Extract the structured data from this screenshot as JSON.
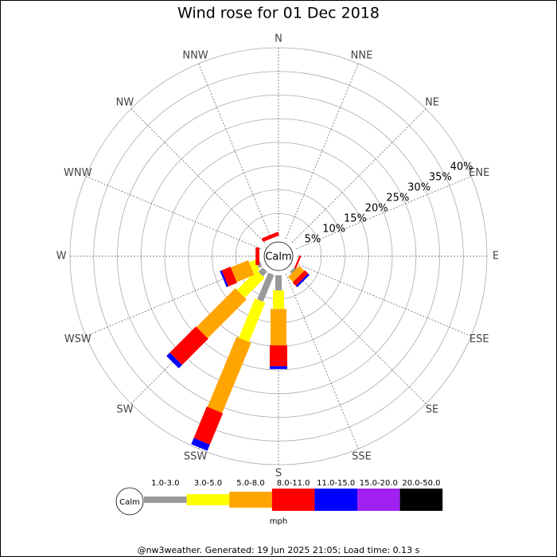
{
  "chart_data": {
    "type": "windrose",
    "title": "Wind rose for 01 Dec 2018",
    "directions": [
      "N",
      "NNE",
      "NE",
      "ENE",
      "E",
      "ESE",
      "SE",
      "SSE",
      "S",
      "SSW",
      "SW",
      "WSW",
      "W",
      "WNW",
      "NW",
      "NNW"
    ],
    "calm_label": "Calm",
    "rlim": [
      0,
      40
    ],
    "rticks": [
      {
        "value": 5,
        "label": "5%"
      },
      {
        "value": 10,
        "label": "10%"
      },
      {
        "value": 15,
        "label": "15%"
      },
      {
        "value": 20,
        "label": "20%"
      },
      {
        "value": 25,
        "label": "25%"
      },
      {
        "value": 30,
        "label": "30%"
      },
      {
        "value": 35,
        "label": "35%"
      },
      {
        "value": 40,
        "label": "40%"
      }
    ],
    "series": [
      {
        "name": "1.0-3.0",
        "color": "#999999",
        "values": [
          0,
          0,
          0,
          0,
          0,
          0,
          0.5,
          0,
          3.2,
          6.1,
          1.3,
          0.8,
          0,
          0,
          0,
          0
        ]
      },
      {
        "name": "3.0-5.0",
        "color": "#ffff00",
        "values": [
          0,
          0,
          0,
          0,
          0,
          0,
          0,
          0,
          3.9,
          9.0,
          5.9,
          1.4,
          0,
          0,
          0,
          0
        ]
      },
      {
        "name": "5.0-8.0",
        "color": "#ffa500",
        "values": [
          0,
          0,
          0,
          0,
          0,
          0,
          1.5,
          0,
          7.7,
          16.0,
          11.6,
          4.0,
          0,
          0,
          0,
          0
        ]
      },
      {
        "name": "8.0-11.0",
        "color": "#ff0000",
        "values": [
          0,
          0,
          0,
          0,
          0,
          0.4,
          1.0,
          0,
          4.4,
          7.2,
          7.8,
          2.0,
          0.8,
          0,
          0,
          0.8
        ]
      },
      {
        "name": "11.0-15.0",
        "color": "#0000ff",
        "values": [
          0,
          0,
          0,
          0,
          0,
          0,
          0.4,
          0,
          0.6,
          1.4,
          1.0,
          0.4,
          0,
          0,
          0,
          0
        ]
      },
      {
        "name": "15.0-20.0",
        "color": "#a020f0",
        "values": [
          0,
          0,
          0,
          0,
          0,
          0,
          0,
          0,
          0,
          0,
          0,
          0,
          0,
          0,
          0,
          0
        ]
      },
      {
        "name": "20.0-50.0",
        "color": "#000000",
        "values": [
          0,
          0,
          0,
          0,
          0,
          0,
          0,
          0,
          0,
          0,
          0,
          0,
          0,
          0,
          0,
          0
        ]
      }
    ],
    "legend_unit": "mph",
    "footer": "@nw3weather. Generated: 19 Jun 2025 21:05; Load time: 0.13 s"
  }
}
